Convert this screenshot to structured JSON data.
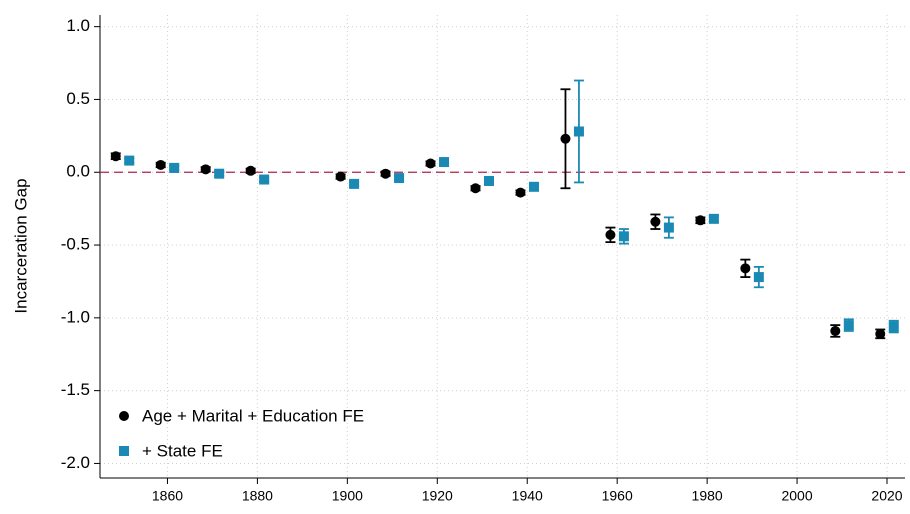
{
  "chart_data": {
    "type": "scatter",
    "ylabel": "Incarceration Gap",
    "xlim": [
      1845,
      2024
    ],
    "xticks": [
      1860,
      1880,
      1900,
      1920,
      1940,
      1960,
      1980,
      2000,
      2020
    ],
    "ylim": [
      -2.1,
      1.08
    ],
    "yticks": [
      {
        "value": 1,
        "label": "1.0"
      },
      0.5,
      {
        "value": 0,
        "label": "0.0"
      },
      -0.5,
      {
        "value": -1,
        "label": "-1.0"
      },
      -1.5,
      {
        "value": -2,
        "label": "-2.0"
      }
    ],
    "grid": true,
    "hline": 0,
    "hline_color": "#b0234f",
    "legend": "lower left",
    "series": [
      {
        "name": "Age + Marital + Education FE",
        "color": "#000000",
        "marker": "circle",
        "x": [
          1848.5,
          1858.5,
          1868.5,
          1878.5,
          1898.5,
          1908.5,
          1918.5,
          1928.5,
          1938.5,
          1948.5,
          1958.5,
          1968.5,
          1978.5,
          1988.5,
          2008.5,
          2018.5
        ],
        "values": [
          0.11,
          0.05,
          0.02,
          0.01,
          -0.03,
          -0.01,
          0.06,
          -0.11,
          -0.14,
          0.23,
          -0.43,
          -0.34,
          -0.33,
          -0.66,
          -1.09,
          -1.11
        ],
        "errors": [
          0.02,
          0.015,
          0.015,
          0.015,
          0.015,
          0.015,
          0.015,
          0.015,
          0.015,
          0.34,
          0.05,
          0.05,
          0.02,
          0.06,
          0.04,
          0.03
        ]
      },
      {
        "name": "+ State FE",
        "color": "#1a8ab5",
        "marker": "square",
        "x": [
          1851.5,
          1861.5,
          1871.5,
          1881.5,
          1901.5,
          1911.5,
          1921.5,
          1931.5,
          1941.5,
          1951.5,
          1961.5,
          1971.5,
          1981.5,
          1991.5,
          2011.5,
          2021.5
        ],
        "values": [
          0.08,
          0.03,
          -0.01,
          -0.05,
          -0.08,
          -0.04,
          0.07,
          -0.06,
          -0.1,
          0.28,
          -0.44,
          -0.38,
          -0.32,
          -0.72,
          -1.05,
          -1.06
        ],
        "errors": [
          0.015,
          0.015,
          0.015,
          0.015,
          0.015,
          0.015,
          0.015,
          0.015,
          0.015,
          0.35,
          0.05,
          0.07,
          0.02,
          0.07,
          0.04,
          0.04
        ]
      }
    ]
  }
}
